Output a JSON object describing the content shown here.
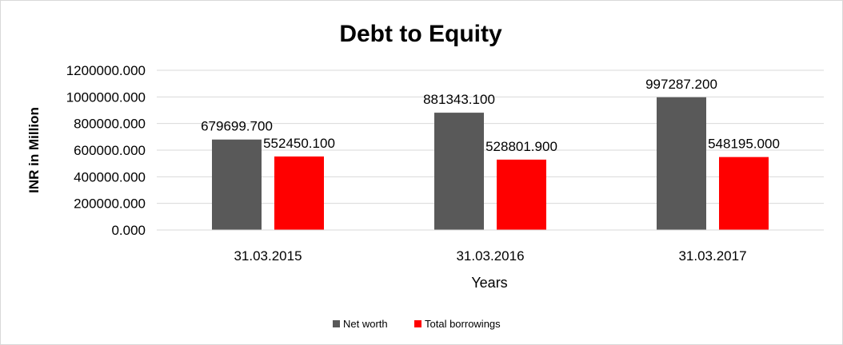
{
  "chart_data": {
    "type": "bar",
    "title": "Debt to Equity",
    "xlabel": "Years",
    "ylabel": "INR in Million",
    "categories": [
      "31.03.2015",
      "31.03.2016",
      "31.03.2017"
    ],
    "series": [
      {
        "name": "Net worth",
        "color": "#595959",
        "values": [
          679699.7,
          881343.1,
          997287.2
        ],
        "labels": [
          "679699.700",
          "881343.100",
          "997287.200"
        ]
      },
      {
        "name": "Total borrowings",
        "color": "#ff0000",
        "values": [
          552450.1,
          528801.9,
          548195.0
        ],
        "labels": [
          "552450.100",
          "528801.900",
          "548195.000"
        ]
      }
    ],
    "ylim": [
      0,
      1200000
    ],
    "yticks": [
      0,
      200000,
      400000,
      600000,
      800000,
      1000000,
      1200000
    ],
    "ytick_labels": [
      "0.000",
      "200000.000",
      "400000.000",
      "600000.000",
      "800000.000",
      "1000000.000",
      "1200000.000"
    ],
    "grid": true,
    "legend_position": "bottom"
  }
}
